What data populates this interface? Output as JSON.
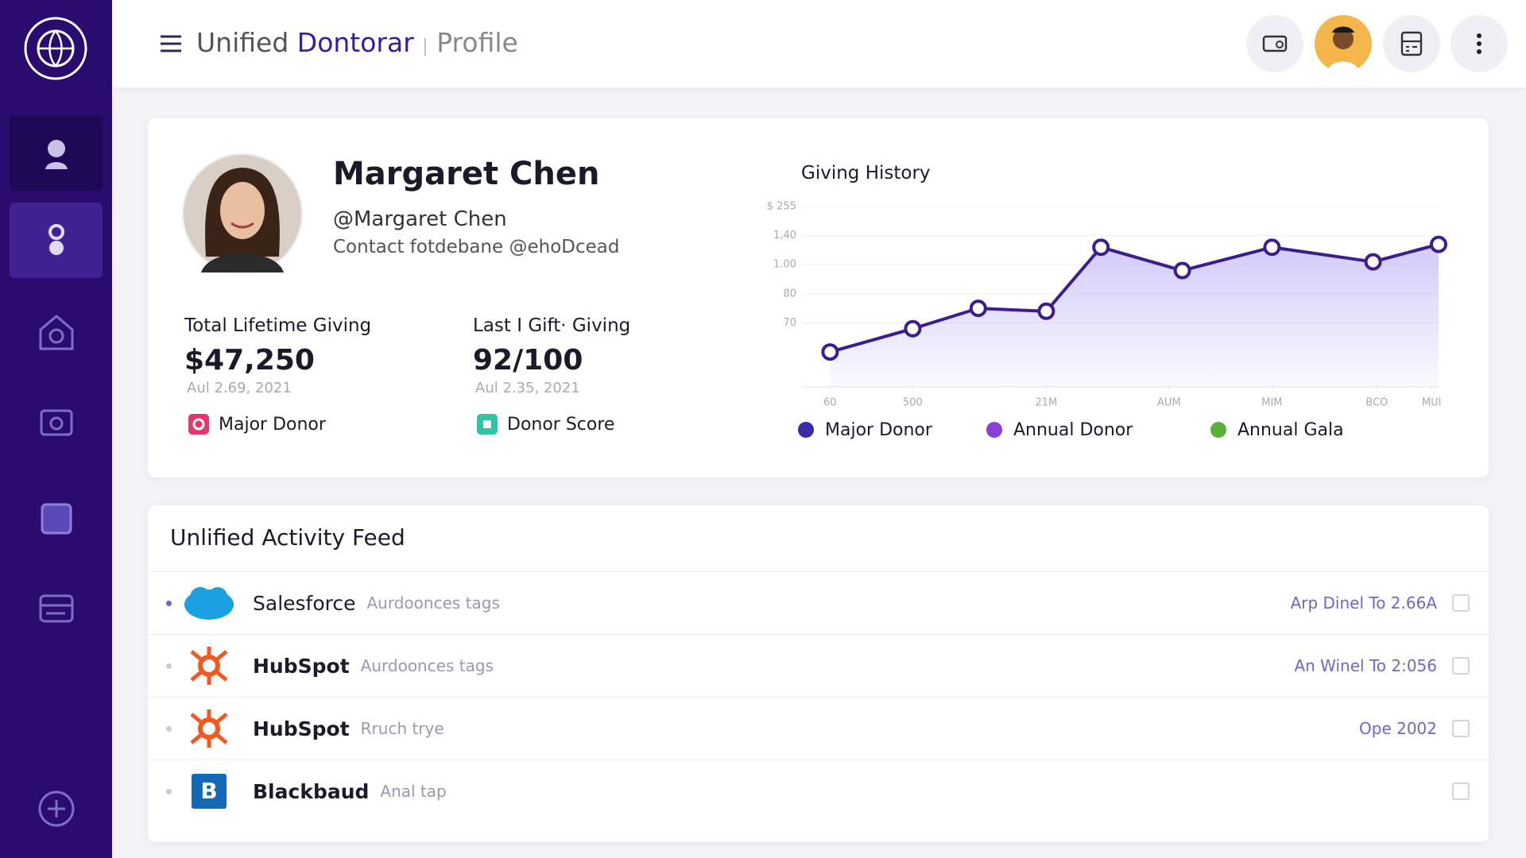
{
  "header": {
    "title_prefix": "Unified",
    "title_brand": "Dontorar",
    "title_suffix": "Profile"
  },
  "profile": {
    "name": "Margaret Chen",
    "handle": "@Margaret Chen",
    "contact": "Contact fotdebane @ehoDcead",
    "stats": [
      {
        "label": "Total Lifetime Giving",
        "value": "$47,250",
        "date": "Aul 2.69, 2021",
        "tag": "Major Donor"
      },
      {
        "label": "Last I Gift· Giving",
        "value": "92/100",
        "date": "Aul 2.35, 2021",
        "tag": "Donor Score"
      }
    ]
  },
  "chart_data": {
    "type": "line",
    "title": "Giving History",
    "x": [
      4.3,
      17.3,
      27.6,
      38.3,
      46.9,
      59.7,
      73.8,
      89.7,
      100
    ],
    "series": [
      {
        "color": "#3b1d8f",
        "values": [
          60,
          68,
          75,
          74,
          96,
          88,
          96,
          91,
          97
        ]
      }
    ],
    "xlim": [
      0,
      100
    ],
    "xticks": [
      {
        "value": 4.3,
        "label": "60"
      },
      {
        "value": 17.3,
        "label": "500"
      },
      {
        "value": 38.3,
        "label": "21M"
      },
      {
        "value": 57.6,
        "label": "AUM"
      },
      {
        "value": 73.8,
        "label": "MIM"
      },
      {
        "value": 90.3,
        "label": "BCO"
      },
      {
        "value": 98.9,
        "label": "MUI"
      }
    ],
    "ylim": [
      48,
      110
    ],
    "yticks": [
      70,
      80,
      {
        "value": 90,
        "label": "1.00"
      },
      {
        "value": 100,
        "label": "1,40"
      },
      {
        "value": 110,
        "label": "$ 255"
      }
    ],
    "grid": true,
    "tags": [
      "Major Donor",
      "Annual Donor",
      "Annual Gala"
    ]
  },
  "feed": {
    "title": "Unlified Activity Feed",
    "rows": [
      {
        "source": "Salesforce",
        "detail": "Aurdoonces tags",
        "meta": "Arp Dinel To 2.66A"
      },
      {
        "source": "HubSpot",
        "detail": "Aurdoonces tags",
        "meta": "An Winel To 2:056"
      },
      {
        "source": "HubSpot",
        "detail": "Rruch trye",
        "meta": "Ope 2002"
      },
      {
        "source": "Blackbaud",
        "detail": "Anal tap"
      }
    ]
  }
}
